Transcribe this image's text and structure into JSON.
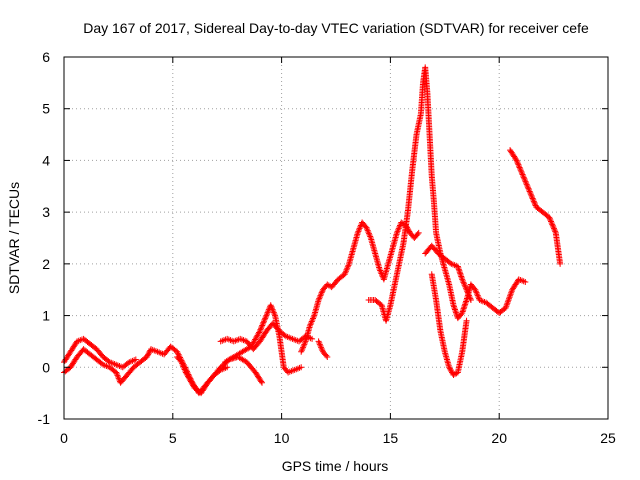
{
  "chart_data": {
    "type": "scatter",
    "title": "Day 167 of 2017, Sidereal Day-to-day VTEC variation (SDTVAR) for receiver cefe",
    "xlabel": "GPS time / hours",
    "ylabel": "SDTVAR / TECUs",
    "xlim": [
      0,
      25
    ],
    "ylim": [
      -1,
      6
    ],
    "x_ticks": [
      "0",
      "5",
      "10",
      "15",
      "20",
      "25"
    ],
    "y_ticks": [
      "-1",
      "0",
      "1",
      "2",
      "3",
      "4",
      "5",
      "6"
    ],
    "grid": true,
    "marker": "+",
    "series": [
      {
        "name": "SDTVAR",
        "color": "#ff0000",
        "segments": [
          [
            [
              0.0,
              -0.1
            ],
            [
              0.3,
              0.0
            ],
            [
              0.6,
              0.2
            ],
            [
              0.9,
              0.35
            ],
            [
              1.2,
              0.25
            ],
            [
              1.5,
              0.15
            ],
            [
              1.8,
              0.05
            ],
            [
              2.1,
              0.0
            ],
            [
              2.4,
              -0.1
            ],
            [
              2.6,
              -0.3
            ],
            [
              2.9,
              -0.15
            ],
            [
              3.2,
              0.0
            ],
            [
              3.5,
              0.1
            ],
            [
              3.8,
              0.2
            ],
            [
              4.0,
              0.35
            ],
            [
              4.3,
              0.3
            ],
            [
              4.6,
              0.25
            ],
            [
              4.9,
              0.4
            ],
            [
              5.2,
              0.3
            ],
            [
              5.5,
              0.05
            ],
            [
              5.9,
              -0.3
            ],
            [
              6.2,
              -0.5
            ],
            [
              6.5,
              -0.35
            ],
            [
              6.8,
              -0.2
            ],
            [
              7.2,
              0.0
            ],
            [
              7.6,
              0.15
            ],
            [
              8.0,
              0.2
            ],
            [
              8.4,
              0.1
            ],
            [
              8.8,
              -0.1
            ],
            [
              9.1,
              -0.3
            ]
          ],
          [
            [
              0.0,
              0.1
            ],
            [
              0.3,
              0.3
            ],
            [
              0.6,
              0.5
            ],
            [
              0.9,
              0.55
            ],
            [
              1.2,
              0.45
            ],
            [
              1.5,
              0.35
            ],
            [
              1.8,
              0.2
            ],
            [
              2.1,
              0.1
            ],
            [
              2.4,
              0.05
            ],
            [
              2.7,
              0.0
            ],
            [
              3.0,
              0.1
            ],
            [
              3.3,
              0.15
            ]
          ],
          [
            [
              5.2,
              0.2
            ],
            [
              5.4,
              0.1
            ],
            [
              5.6,
              -0.1
            ],
            [
              5.8,
              -0.25
            ],
            [
              6.0,
              -0.4
            ],
            [
              6.3,
              -0.5
            ],
            [
              6.6,
              -0.3
            ],
            [
              6.9,
              -0.15
            ],
            [
              7.2,
              -0.05
            ],
            [
              7.5,
              0.0
            ]
          ],
          [
            [
              7.2,
              0.5
            ],
            [
              7.5,
              0.55
            ],
            [
              7.8,
              0.5
            ],
            [
              8.1,
              0.55
            ],
            [
              8.4,
              0.5
            ],
            [
              8.7,
              0.35
            ],
            [
              9.0,
              0.5
            ],
            [
              9.3,
              0.7
            ],
            [
              9.6,
              0.85
            ],
            [
              9.9,
              0.7
            ],
            [
              10.2,
              0.6
            ],
            [
              10.5,
              0.55
            ],
            [
              10.8,
              0.5
            ],
            [
              11.1,
              0.6
            ],
            [
              11.4,
              0.55
            ]
          ],
          [
            [
              7.4,
              0.1
            ],
            [
              7.8,
              0.2
            ],
            [
              8.2,
              0.3
            ],
            [
              8.6,
              0.4
            ],
            [
              9.0,
              0.7
            ],
            [
              9.3,
              1.0
            ],
            [
              9.5,
              1.2
            ],
            [
              9.7,
              1.0
            ],
            [
              9.9,
              0.6
            ],
            [
              10.1,
              0.0
            ],
            [
              10.3,
              -0.1
            ],
            [
              10.6,
              -0.05
            ],
            [
              10.9,
              0.0
            ]
          ],
          [
            [
              10.9,
              0.3
            ],
            [
              11.1,
              0.5
            ],
            [
              11.3,
              0.8
            ],
            [
              11.5,
              1.0
            ],
            [
              11.7,
              1.3
            ],
            [
              11.9,
              1.5
            ],
            [
              12.1,
              1.6
            ],
            [
              12.3,
              1.55
            ],
            [
              12.6,
              1.7
            ],
            [
              12.9,
              1.8
            ],
            [
              13.1,
              2.0
            ],
            [
              13.3,
              2.3
            ],
            [
              13.5,
              2.6
            ],
            [
              13.7,
              2.8
            ],
            [
              13.9,
              2.7
            ],
            [
              14.1,
              2.5
            ],
            [
              14.3,
              2.2
            ],
            [
              14.5,
              1.9
            ],
            [
              14.7,
              1.7
            ],
            [
              14.9,
              2.0
            ],
            [
              15.1,
              2.3
            ],
            [
              15.3,
              2.6
            ],
            [
              15.5,
              2.8
            ],
            [
              15.7,
              2.75
            ],
            [
              15.9,
              2.6
            ],
            [
              16.1,
              2.5
            ],
            [
              16.3,
              2.6
            ]
          ],
          [
            [
              11.7,
              0.5
            ],
            [
              11.9,
              0.3
            ],
            [
              12.1,
              0.2
            ]
          ],
          [
            [
              14.0,
              1.3
            ],
            [
              14.3,
              1.3
            ],
            [
              14.6,
              1.2
            ],
            [
              14.8,
              0.9
            ],
            [
              15.0,
              1.2
            ],
            [
              15.2,
              1.6
            ],
            [
              15.4,
              2.0
            ],
            [
              15.6,
              2.4
            ],
            [
              15.8,
              3.0
            ],
            [
              16.0,
              3.8
            ],
            [
              16.2,
              4.5
            ],
            [
              16.4,
              4.9
            ],
            [
              16.5,
              5.5
            ],
            [
              16.6,
              5.8
            ],
            [
              16.7,
              5.3
            ],
            [
              16.8,
              4.5
            ],
            [
              16.9,
              3.7
            ],
            [
              17.0,
              3.2
            ],
            [
              17.1,
              2.6
            ],
            [
              17.3,
              2.2
            ],
            [
              17.5,
              1.9
            ],
            [
              17.7,
              1.6
            ],
            [
              17.9,
              1.2
            ],
            [
              18.1,
              0.95
            ],
            [
              18.3,
              1.05
            ],
            [
              18.5,
              1.3
            ],
            [
              18.7,
              1.6
            ],
            [
              18.9,
              1.5
            ],
            [
              19.1,
              1.3
            ],
            [
              19.4,
              1.25
            ],
            [
              19.7,
              1.15
            ],
            [
              20.0,
              1.05
            ],
            [
              20.3,
              1.15
            ],
            [
              20.6,
              1.5
            ],
            [
              20.9,
              1.7
            ],
            [
              21.2,
              1.65
            ]
          ],
          [
            [
              16.6,
              2.2
            ],
            [
              16.9,
              2.35
            ],
            [
              17.2,
              2.2
            ],
            [
              17.5,
              2.1
            ],
            [
              17.8,
              2.0
            ],
            [
              18.1,
              1.95
            ],
            [
              18.3,
              1.7
            ],
            [
              18.5,
              1.5
            ],
            [
              18.7,
              1.3
            ]
          ],
          [
            [
              16.9,
              1.8
            ],
            [
              17.1,
              1.3
            ],
            [
              17.3,
              0.7
            ],
            [
              17.5,
              0.3
            ],
            [
              17.7,
              0.0
            ],
            [
              17.9,
              -0.15
            ],
            [
              18.1,
              -0.1
            ],
            [
              18.3,
              0.3
            ],
            [
              18.5,
              0.9
            ]
          ],
          [
            [
              20.5,
              4.2
            ],
            [
              20.8,
              4.0
            ],
            [
              21.1,
              3.7
            ],
            [
              21.4,
              3.4
            ],
            [
              21.7,
              3.1
            ],
            [
              22.0,
              3.0
            ],
            [
              22.3,
              2.9
            ],
            [
              22.6,
              2.6
            ],
            [
              22.8,
              2.0
            ]
          ]
        ]
      }
    ]
  }
}
